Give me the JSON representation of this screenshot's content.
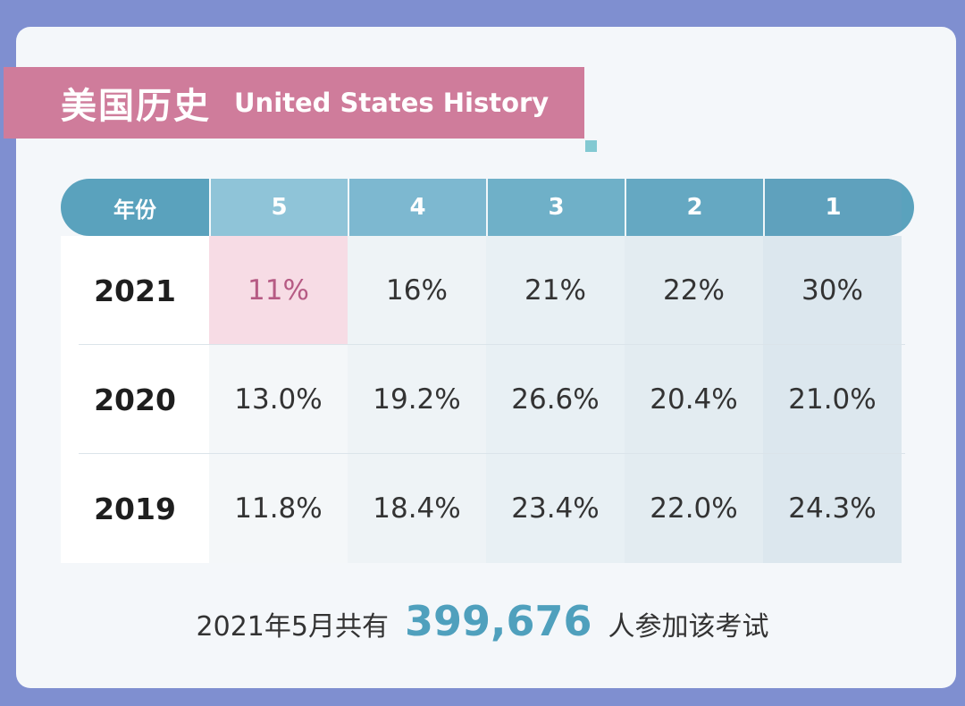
{
  "title": {
    "cn": "美国历史",
    "en": "United States History"
  },
  "table": {
    "year_header": "年份",
    "score_headers": [
      "5",
      "4",
      "3",
      "2",
      "1"
    ],
    "rows": [
      {
        "year": "2021",
        "values": [
          "11%",
          "16%",
          "21%",
          "22%",
          "30%"
        ]
      },
      {
        "year": "2020",
        "values": [
          "13.0%",
          "19.2%",
          "26.6%",
          "20.4%",
          "21.0%"
        ]
      },
      {
        "year": "2019",
        "values": [
          "11.8%",
          "18.4%",
          "23.4%",
          "22.0%",
          "24.3%"
        ]
      }
    ]
  },
  "footer": {
    "prefix": "2021年5月共有",
    "count": "399,676",
    "suffix": "人参加该考试"
  },
  "colors": {
    "accent_pink": "#cf7c9b",
    "accent_blue": "#5aa2bd",
    "count_color": "#4fa0bd"
  }
}
